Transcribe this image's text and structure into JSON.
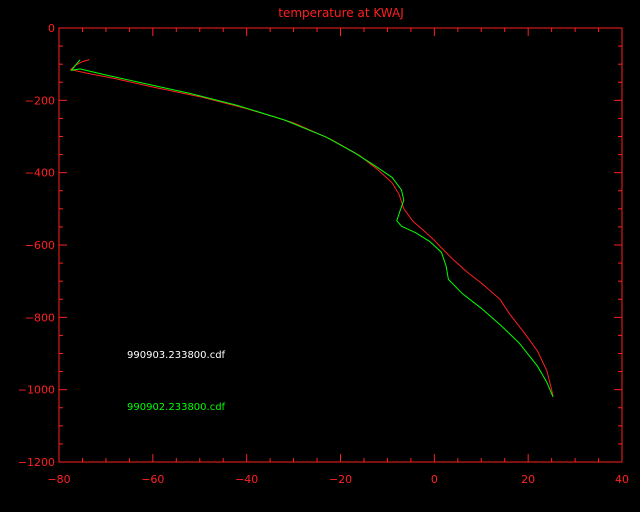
{
  "chart_data": {
    "type": "line",
    "title": "temperature at KWAJ",
    "xlabel": "",
    "ylabel": "",
    "xlim": [
      -80,
      40
    ],
    "ylim": [
      -1200,
      0
    ],
    "x_ticks": [
      -80,
      -60,
      -40,
      -20,
      0,
      20,
      40
    ],
    "y_ticks": [
      0,
      -200,
      -400,
      -600,
      -800,
      -1000,
      -1200
    ],
    "x_tick_labels": [
      "−80",
      "−60",
      "−40",
      "−20",
      "0",
      "20",
      "40"
    ],
    "y_tick_labels": [
      "0",
      "−200",
      "−400",
      "−600",
      "−800",
      "−1000",
      "−1200"
    ],
    "grid": false,
    "legend_placement": "lower-left",
    "colors": {
      "background": "#000000",
      "axes": "#ff2020"
    },
    "series": [
      {
        "name": "990903.233800.cdf",
        "color": "#ff2020",
        "points": [
          [
            -73.5,
            -87
          ],
          [
            -75.0,
            -93
          ],
          [
            -76.5,
            -103
          ],
          [
            -77.5,
            -115
          ],
          [
            -74.0,
            -125
          ],
          [
            -68.0,
            -140
          ],
          [
            -60.0,
            -163
          ],
          [
            -50.0,
            -190
          ],
          [
            -40.0,
            -223
          ],
          [
            -30.0,
            -262
          ],
          [
            -22.0,
            -308
          ],
          [
            -16.0,
            -352
          ],
          [
            -12.0,
            -392
          ],
          [
            -9.0,
            -428
          ],
          [
            -7.5,
            -460
          ],
          [
            -6.5,
            -500
          ],
          [
            -4.5,
            -535
          ],
          [
            -2.0,
            -563
          ],
          [
            0.0,
            -587
          ],
          [
            2.0,
            -614
          ],
          [
            4.0,
            -640
          ],
          [
            7.0,
            -675
          ],
          [
            10.0,
            -705
          ],
          [
            14.0,
            -750
          ],
          [
            16.0,
            -790
          ],
          [
            19.0,
            -840
          ],
          [
            22.0,
            -893
          ],
          [
            24.0,
            -948
          ],
          [
            25.0,
            -1000
          ],
          [
            25.3,
            -1018
          ]
        ]
      },
      {
        "name": "990902.233800.cdf",
        "color": "#00ff00",
        "points": [
          [
            -75.5,
            -88
          ],
          [
            -76.5,
            -103
          ],
          [
            -77.3,
            -117
          ],
          [
            -75.5,
            -113
          ],
          [
            -70.0,
            -130
          ],
          [
            -62.0,
            -153
          ],
          [
            -52.0,
            -181
          ],
          [
            -42.0,
            -214
          ],
          [
            -32.0,
            -254
          ],
          [
            -23.0,
            -302
          ],
          [
            -17.0,
            -345
          ],
          [
            -13.0,
            -378
          ],
          [
            -9.0,
            -413
          ],
          [
            -7.0,
            -448
          ],
          [
            -6.5,
            -476
          ],
          [
            -7.3,
            -505
          ],
          [
            -8.0,
            -533
          ],
          [
            -7.0,
            -548
          ],
          [
            -4.0,
            -566
          ],
          [
            -1.0,
            -590
          ],
          [
            1.5,
            -620
          ],
          [
            2.5,
            -658
          ],
          [
            3.0,
            -695
          ],
          [
            6.0,
            -735
          ],
          [
            10.0,
            -775
          ],
          [
            14.0,
            -820
          ],
          [
            18.0,
            -870
          ],
          [
            22.0,
            -935
          ],
          [
            24.0,
            -980
          ],
          [
            25.3,
            -1020
          ]
        ]
      }
    ]
  }
}
